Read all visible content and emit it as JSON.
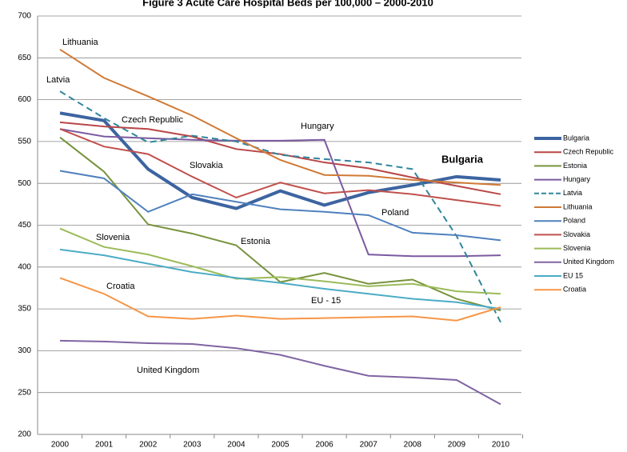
{
  "chart_data": {
    "type": "line",
    "title": "Figure 3 Acute Care Hospital Beds per 100,000 – 2000-2010",
    "categories": [
      "2000",
      "2001",
      "2002",
      "2003",
      "2004",
      "2005",
      "2006",
      "2007",
      "2008",
      "2009",
      "2010"
    ],
    "ylim": [
      200,
      700
    ],
    "yticks": [
      200,
      250,
      300,
      350,
      400,
      450,
      500,
      550,
      600,
      650,
      700
    ],
    "grid": true,
    "series": [
      {
        "name": "Bulgaria",
        "color": "#3c64a0",
        "values": [
          584,
          575,
          517,
          483,
          470,
          491,
          474,
          489,
          498,
          508,
          504
        ]
      },
      {
        "name": "Czech Republic",
        "color": "#b94646",
        "values": [
          573,
          568,
          565,
          556,
          541,
          535,
          525,
          518,
          507,
          497,
          487
        ]
      },
      {
        "name": "Estonia",
        "color": "#77933c",
        "values": [
          555,
          514,
          451,
          440,
          426,
          382,
          393,
          380,
          385,
          362,
          348
        ]
      },
      {
        "name": "Hungary",
        "color": "#7b5aa0",
        "values": [
          565,
          556,
          554,
          552,
          551,
          551,
          552,
          415,
          413,
          413,
          414
        ]
      },
      {
        "name": "Latvia",
        "color": "#31859c",
        "dashed": true,
        "values": [
          610,
          578,
          549,
          557,
          550,
          534,
          529,
          525,
          517,
          437,
          334
        ]
      },
      {
        "name": "Lithuania",
        "color": "#d07a36",
        "values": [
          660,
          626,
          604,
          581,
          554,
          528,
          510,
          509,
          504,
          501,
          498
        ]
      },
      {
        "name": "Poland",
        "color": "#4f81bd",
        "values": [
          515,
          506,
          466,
          487,
          478,
          469,
          466,
          462,
          441,
          438,
          432
        ]
      },
      {
        "name": "Slovakia",
        "color": "#c0504d",
        "values": [
          565,
          544,
          535,
          508,
          483,
          501,
          488,
          492,
          487,
          480,
          473
        ]
      },
      {
        "name": "Slovenia",
        "color": "#9bbb59",
        "values": [
          446,
          424,
          415,
          401,
          386,
          388,
          383,
          377,
          380,
          371,
          368
        ]
      },
      {
        "name": "United Kingdom",
        "color": "#8064a2",
        "values": [
          312,
          311,
          309,
          308,
          303,
          295,
          282,
          270,
          268,
          265,
          236
        ]
      },
      {
        "name": "EU 15",
        "color": "#4bacc6",
        "values": [
          421,
          414,
          404,
          394,
          387,
          381,
          374,
          368,
          362,
          358,
          350
        ]
      },
      {
        "name": "Croatia",
        "color": "#f79646",
        "values": [
          387,
          368,
          341,
          338,
          342,
          338,
          339,
          340,
          341,
          336,
          352
        ]
      }
    ],
    "annotations": [
      "Lithuania",
      "Latvia",
      "Czech Republic",
      "Hungary",
      "Slovakia",
      "Bulgaria",
      "Poland",
      "Slovenia",
      "Estonia",
      "Croatia",
      "EU - 15",
      "United Kingdom"
    ]
  }
}
